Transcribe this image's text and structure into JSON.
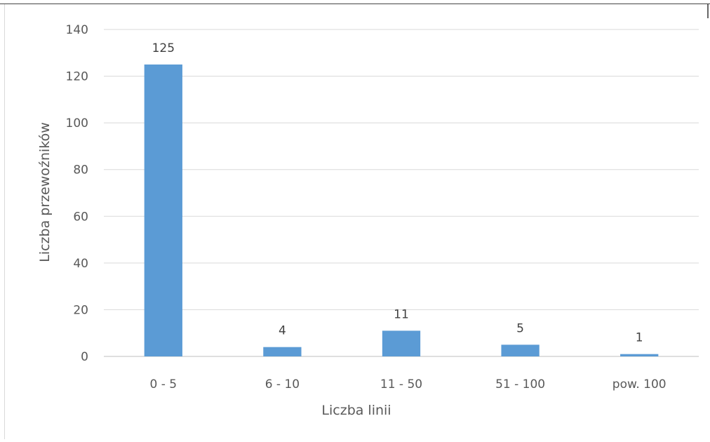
{
  "chart_data": {
    "type": "bar",
    "categories": [
      "0 - 5",
      "6 - 10",
      "11 - 50",
      "51 - 100",
      "pow. 100"
    ],
    "values": [
      125,
      4,
      11,
      5,
      1
    ],
    "data_labels": [
      "125",
      "4",
      "11",
      "5",
      "1"
    ],
    "xlabel": "Liczba linii",
    "ylabel": "Liczba przewoźników",
    "ylim": [
      0,
      140
    ],
    "yticks": [
      0,
      20,
      40,
      60,
      80,
      100,
      120,
      140
    ],
    "grid": true,
    "legend": "none",
    "colors": {
      "bar": "#5b9bd5",
      "grid": "#d9d9d9",
      "axis": "#bfbfbf",
      "text": "#595959"
    }
  }
}
